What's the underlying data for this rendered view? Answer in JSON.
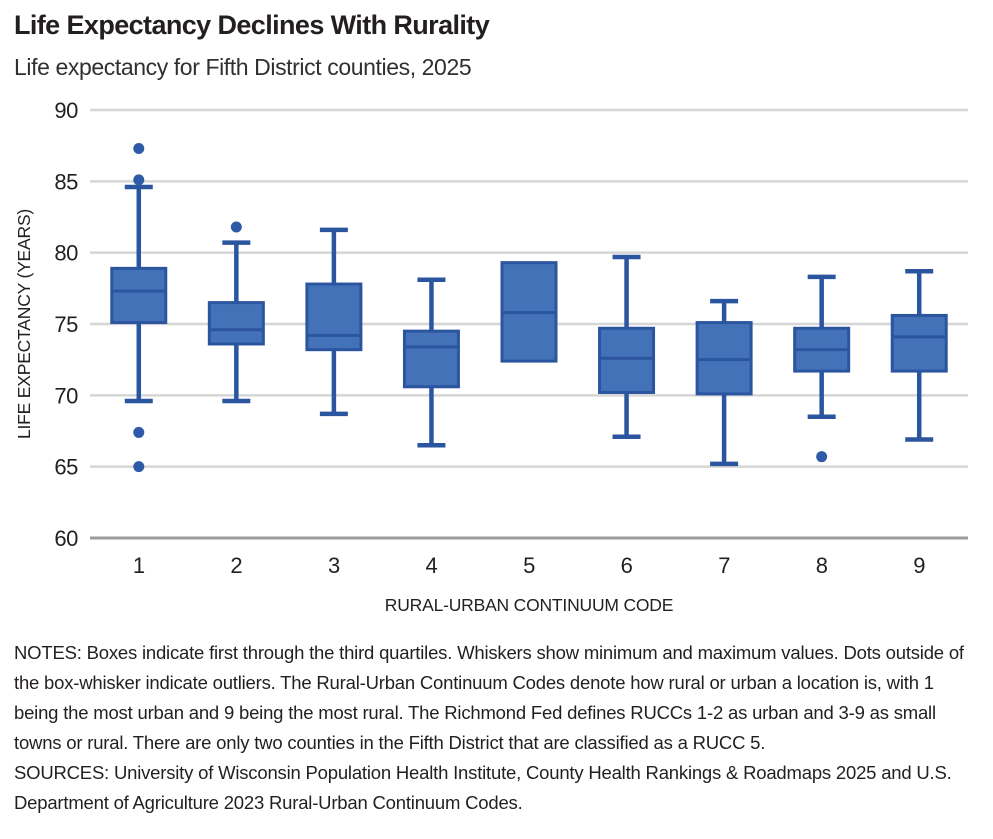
{
  "chart_data": {
    "type": "boxplot",
    "title": "Life Expectancy Declines With Rurality",
    "subtitle": "Life expectancy for Fifth District counties, 2025",
    "xlabel": "RURAL-URBAN CONTINUUM CODE",
    "ylabel": "LIFE EXPECTANCY (YEARS)",
    "ylim": [
      60,
      90
    ],
    "yticks": [
      90,
      85,
      80,
      75,
      70,
      65,
      60
    ],
    "grid": "horizontal",
    "legend": "none",
    "categories": [
      "1",
      "2",
      "3",
      "4",
      "5",
      "6",
      "7",
      "8",
      "9"
    ],
    "boxes": [
      {
        "category": "1",
        "min": 69.6,
        "q1": 75.1,
        "median": 77.3,
        "q3": 78.9,
        "max": 84.6,
        "outliers": [
          87.3,
          85.1,
          67.4,
          65.0
        ]
      },
      {
        "category": "2",
        "min": 69.6,
        "q1": 73.6,
        "median": 74.6,
        "q3": 76.5,
        "max": 80.7,
        "outliers": [
          81.8
        ]
      },
      {
        "category": "3",
        "min": 68.7,
        "q1": 73.2,
        "median": 74.2,
        "q3": 77.8,
        "max": 81.6,
        "outliers": []
      },
      {
        "category": "4",
        "min": 66.5,
        "q1": 70.6,
        "median": 73.4,
        "q3": 74.5,
        "max": 78.1,
        "outliers": []
      },
      {
        "category": "5",
        "min": null,
        "q1": 72.4,
        "median": 75.8,
        "q3": 79.3,
        "max": null,
        "outliers": []
      },
      {
        "category": "6",
        "min": 67.1,
        "q1": 70.2,
        "median": 72.6,
        "q3": 74.7,
        "max": 79.7,
        "outliers": []
      },
      {
        "category": "7",
        "min": 65.2,
        "q1": 70.1,
        "median": 72.5,
        "q3": 75.1,
        "max": 76.6,
        "outliers": []
      },
      {
        "category": "8",
        "min": 68.5,
        "q1": 71.7,
        "median": 73.2,
        "q3": 74.7,
        "max": 78.3,
        "outliers": [
          65.7
        ]
      },
      {
        "category": "9",
        "min": 66.9,
        "q1": 71.7,
        "median": 74.1,
        "q3": 75.6,
        "max": 78.7,
        "outliers": []
      }
    ],
    "colors": {
      "box_fill": "#4472B8",
      "box_stroke": "#2C55A0",
      "outlier_dot": "#2E5AA7",
      "gridline": "#D6D6D6",
      "axis_line": "#9C9C9C",
      "text": "#231F20"
    }
  },
  "footer": {
    "notes": "NOTES: Boxes indicate first through the third quartiles. Whiskers show minimum and maximum values. Dots outside of the box-whisker indicate outliers. The Rural-Urban Continuum Codes denote how rural or urban a location is, with 1 being the most urban and 9 being the most rural. The Richmond Fed defines RUCCs 1-2 as urban and 3-9 as small towns or rural. There are only two counties in the Fifth District that are classified as a RUCC 5.",
    "sources": "SOURCES: University of Wisconsin Population Health Institute, County Health Rankings & Roadmaps 2025 and U.S. Department of Agriculture 2023 Rural-Urban Continuum Codes."
  }
}
